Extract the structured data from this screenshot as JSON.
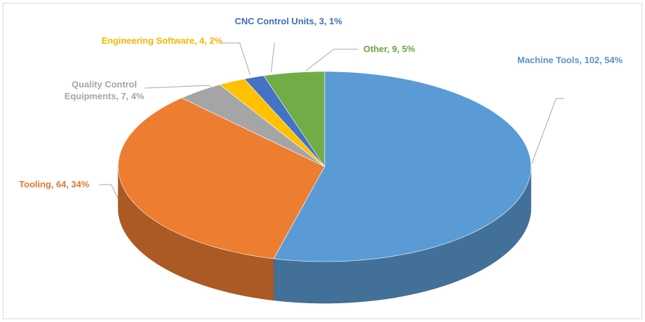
{
  "chart_data": {
    "type": "pie3d",
    "categories": [
      "Machine Tools",
      "Tooling",
      "Quality Control Equipments",
      "Engineering Software",
      "CNC Control Units",
      "Other"
    ],
    "values": [
      102,
      64,
      7,
      4,
      3,
      9
    ],
    "value_labels": [
      "Machine Tools, 102, 54%",
      "Tooling, 64, 34%",
      "Quality Control Equipments, 7, 4%",
      "Engineering Software, 4, 2%",
      "CNC Control Units, 3, 1%",
      "Other, 9, 5%"
    ],
    "colors": [
      "#5b9bd5",
      "#ed7d31",
      "#a5a5a5",
      "#ffc000",
      "#4472c4",
      "#70ad47"
    ]
  }
}
